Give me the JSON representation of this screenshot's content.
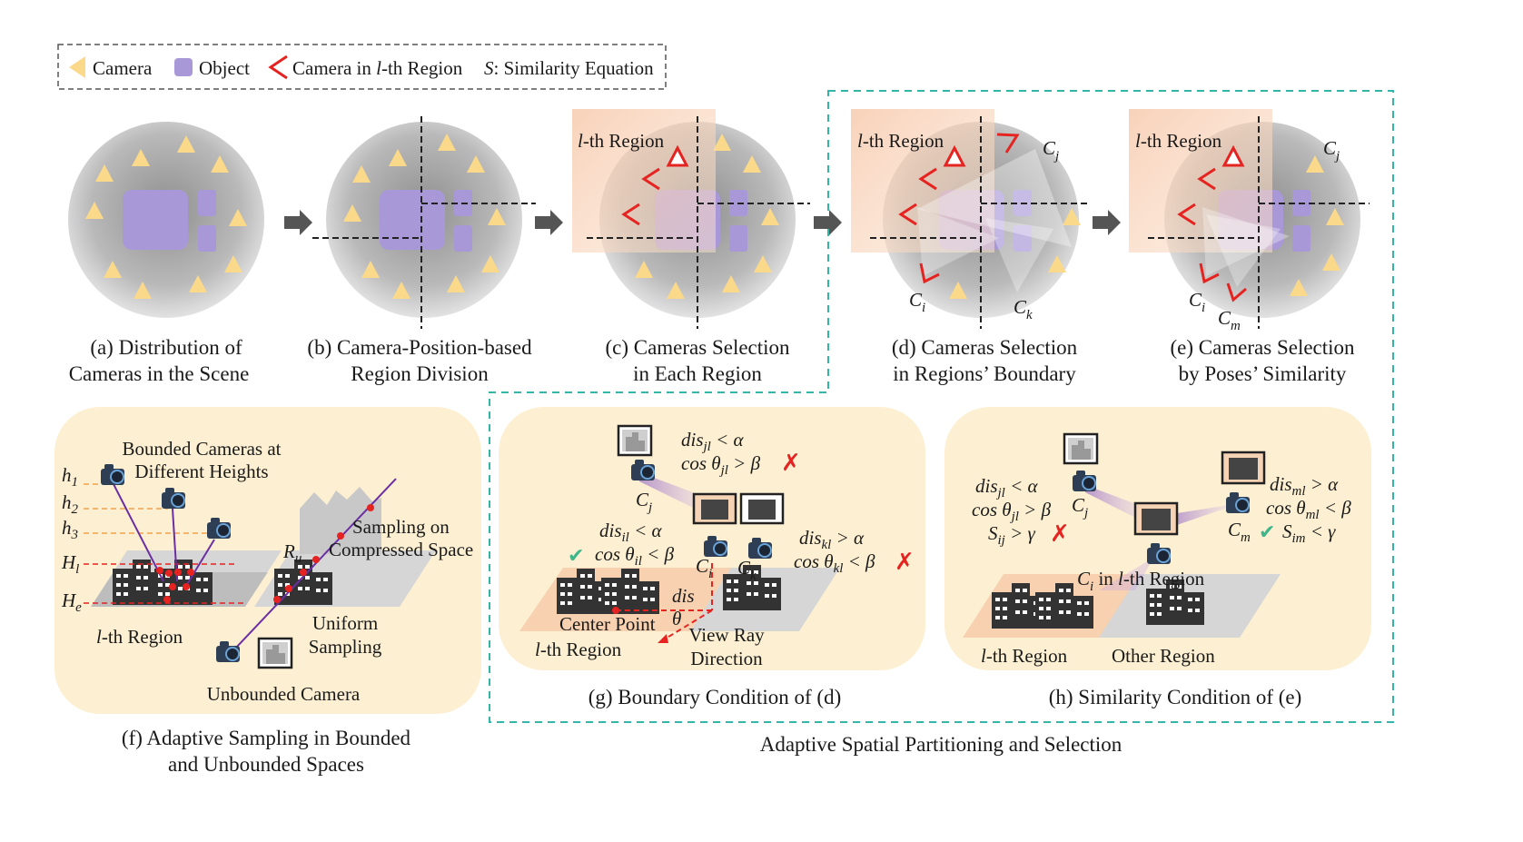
{
  "legend": {
    "camera": "Camera",
    "object": "Object",
    "camera_region_pre": "Camera in ",
    "camera_region_l": "l",
    "camera_region_post": "-th Region",
    "similarity_s": "S",
    "similarity_text": ": Similarity Equation"
  },
  "panels": {
    "a": {
      "line1": "(a) Distribution of",
      "line2": "Cameras in the Scene"
    },
    "b": {
      "line1": "(b) Camera-Position-based",
      "line2": "Region Division"
    },
    "c": {
      "line1": "(c) Cameras Selection",
      "line2": "in Each Region",
      "region_l": "l",
      "region_text": "-th Region"
    },
    "d": {
      "line1": "(d) Cameras Selection",
      "line2": "in Regions’ Boundary",
      "region_l": "l",
      "region_text": "-th Region",
      "cj": "C",
      "cj_sub": "j",
      "ci": "C",
      "ci_sub": "i",
      "ck": "C",
      "ck_sub": "k"
    },
    "e": {
      "line1": "(e) Cameras Selection",
      "line2": "by Poses’ Similarity",
      "region_l": "l",
      "region_text": "-th Region",
      "cj": "C",
      "cj_sub": "j",
      "ci": "C",
      "ci_sub": "i",
      "cm": "C",
      "cm_sub": "m"
    },
    "f": {
      "caption_line1": "(f) Adaptive Sampling in Bounded",
      "caption_line2": "and Unbounded Spaces",
      "bounded_line1": "Bounded Cameras at",
      "bounded_line2": "Different Heights",
      "heights": [
        {
          "h": "h",
          "sub": "1"
        },
        {
          "h": "h",
          "sub": "2"
        },
        {
          "h": "h",
          "sub": "3"
        },
        {
          "h": "H",
          "sub": "l"
        },
        {
          "h": "H",
          "sub": "e"
        }
      ],
      "sampling_line1": "Sampling on",
      "sampling_line2": "Compressed Space",
      "ru": "R",
      "ru_sub": "u",
      "uniform_line1": "Uniform",
      "uniform_line2": "Sampling",
      "region_l": "l",
      "region_text": "-th Region",
      "unbounded": "Unbounded Camera"
    },
    "g": {
      "caption": "(g) Boundary Condition of (d)",
      "cond_jl_1": "dis_jl < α",
      "cond_jl_2": "cos θ_jl > β",
      "cond_il_1": "dis_il < α",
      "cond_il_2": "cos θ_il < β",
      "cond_kl_1": "dis_kl > α",
      "cond_kl_2": "cos θ_kl < β",
      "cj": "C",
      "cj_sub": "j",
      "ci": "C",
      "ci_sub": "i",
      "ck": "C",
      "ck_sub": "k",
      "dis": "dis",
      "theta": "θ",
      "center_point": "Center Point",
      "view_ray_1": "View Ray",
      "view_ray_2": "Direction",
      "region_l": "l",
      "region_text": "-th Region"
    },
    "h": {
      "caption": "(h) Similarity Condition of (e)",
      "cond_jl_1": "dis_jl < α",
      "cond_jl_2": "cos θ_jl > β",
      "cond_jl_3": "S_ij > γ",
      "cond_ml_1": "dis_ml > α",
      "cond_ml_2": "cos θ_ml < β",
      "cond_ml_3": "S_im < γ",
      "cj": "C",
      "cj_sub": "j",
      "cm": "C",
      "cm_sub": "m",
      "ci_in": "C",
      "ci_in_sub": "i",
      "ci_in_text": " in ",
      "region_l": "l",
      "region_text": "-th Region",
      "l_region_l": "l",
      "l_region_text": "-th Region",
      "other_region": "Other Region"
    }
  },
  "section_title": "Adaptive Spatial Partitioning and Selection",
  "marks": {
    "check": "✔",
    "cross": "✗"
  },
  "colors": {
    "camera": "#fbd98a",
    "object": "#a998d8",
    "red_camera": "#e52421",
    "disc": "#bdbdbd",
    "region": "#f5c9a8",
    "panel_bg": "#fdf0d2",
    "teal": "#33b5a8",
    "ray": "#c7a6e4"
  }
}
